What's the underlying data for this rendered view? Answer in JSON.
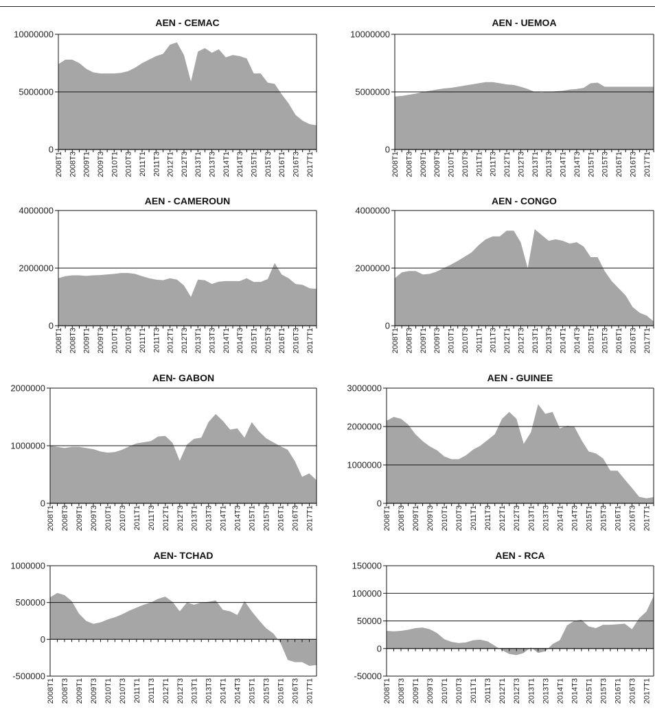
{
  "chart_data": [
    {
      "type": "area",
      "title": "AEN - CEMAC",
      "yticks": [
        0,
        5000000,
        10000000
      ],
      "ylim": [
        0,
        10000000
      ],
      "xtick_labels": [
        "2008T1",
        "2008T3",
        "2009T1",
        "2009T3",
        "2010T1",
        "2010T3",
        "2011T1",
        "2011T3",
        "2012T1",
        "2012T3",
        "2013T1",
        "2013T3",
        "2014T1",
        "2014T3",
        "2015T1",
        "2015T3",
        "2016T1",
        "2016T3",
        "2017T1"
      ],
      "x": [
        "2008T1",
        "2008T2",
        "2008T3",
        "2008T4",
        "2009T1",
        "2009T2",
        "2009T3",
        "2009T4",
        "2010T1",
        "2010T2",
        "2010T3",
        "2010T4",
        "2011T1",
        "2011T2",
        "2011T3",
        "2011T4",
        "2012T1",
        "2012T2",
        "2012T3",
        "2012T4",
        "2013T1",
        "2013T2",
        "2013T3",
        "2013T4",
        "2014T1",
        "2014T2",
        "2014T3",
        "2014T4",
        "2015T1",
        "2015T2",
        "2015T3",
        "2015T4",
        "2016T1",
        "2016T2",
        "2016T3",
        "2016T4",
        "2017T1",
        "2017T2"
      ],
      "values": [
        7400000,
        7800000,
        7800000,
        7500000,
        7000000,
        6700000,
        6600000,
        6600000,
        6600000,
        6650000,
        6800000,
        7100000,
        7500000,
        7800000,
        8100000,
        8300000,
        9100000,
        9300000,
        8200000,
        5900000,
        8500000,
        8800000,
        8400000,
        8700000,
        8000000,
        8200000,
        8100000,
        7900000,
        6600000,
        6600000,
        5800000,
        5700000,
        4800000,
        4000000,
        3000000,
        2500000,
        2200000,
        2100000
      ],
      "grid": true
    },
    {
      "type": "area",
      "title": "AEN - UEMOA",
      "yticks": [
        0,
        5000000,
        10000000
      ],
      "ylim": [
        0,
        10000000
      ],
      "xtick_labels": [
        "2008T1",
        "2008T3",
        "2009T1",
        "2009T3",
        "2010T1",
        "2010T3",
        "2011T1",
        "2011T3",
        "2012T1",
        "2012T3",
        "2013T1",
        "2013T3",
        "2014T1",
        "2014T3",
        "2015T1",
        "2015T3",
        "2016T1",
        "2016T3",
        "2017T1"
      ],
      "x": [
        "2008T1",
        "2008T2",
        "2008T3",
        "2008T4",
        "2009T1",
        "2009T2",
        "2009T3",
        "2009T4",
        "2010T1",
        "2010T2",
        "2010T3",
        "2010T4",
        "2011T1",
        "2011T2",
        "2011T3",
        "2011T4",
        "2012T1",
        "2012T2",
        "2012T3",
        "2012T4",
        "2013T1",
        "2013T2",
        "2013T3",
        "2013T4",
        "2014T1",
        "2014T2",
        "2014T3",
        "2014T4",
        "2015T1",
        "2015T2",
        "2015T3",
        "2015T4",
        "2016T1",
        "2016T2",
        "2016T3",
        "2016T4",
        "2017T1",
        "2017T2"
      ],
      "values": [
        4600000,
        4650000,
        4750000,
        4850000,
        5000000,
        5100000,
        5200000,
        5300000,
        5350000,
        5450000,
        5550000,
        5650000,
        5750000,
        5850000,
        5850000,
        5750000,
        5650000,
        5600000,
        5450000,
        5250000,
        5000000,
        4950000,
        5000000,
        5050000,
        5100000,
        5200000,
        5250000,
        5350000,
        5750000,
        5800000,
        5450000,
        5450000,
        5450000,
        5450000,
        5450000,
        5450000,
        5450000,
        5450000
      ],
      "grid": true
    },
    {
      "type": "area",
      "title": "AEN - CAMEROUN",
      "yticks": [
        0,
        2000000,
        4000000
      ],
      "ylim": [
        0,
        4000000
      ],
      "xtick_labels": [
        "2008T1",
        "2008T3",
        "2009T1",
        "2009T3",
        "2010T1",
        "2010T3",
        "2011T1",
        "2011T3",
        "2012T1",
        "2012T3",
        "2013T1",
        "2013T3",
        "2014T1",
        "2014T3",
        "2015T1",
        "2015T3",
        "2016T1",
        "2016T3",
        "2017T1"
      ],
      "x": [
        "2008T1",
        "2008T2",
        "2008T3",
        "2008T4",
        "2009T1",
        "2009T2",
        "2009T3",
        "2009T4",
        "2010T1",
        "2010T2",
        "2010T3",
        "2010T4",
        "2011T1",
        "2011T2",
        "2011T3",
        "2011T4",
        "2012T1",
        "2012T2",
        "2012T3",
        "2012T4",
        "2013T1",
        "2013T2",
        "2013T3",
        "2013T4",
        "2014T1",
        "2014T2",
        "2014T3",
        "2014T4",
        "2015T1",
        "2015T2",
        "2015T3",
        "2015T4",
        "2016T1",
        "2016T2",
        "2016T3",
        "2016T4",
        "2017T1",
        "2017T2"
      ],
      "values": [
        1650000,
        1720000,
        1750000,
        1750000,
        1730000,
        1750000,
        1760000,
        1780000,
        1800000,
        1830000,
        1830000,
        1800000,
        1720000,
        1650000,
        1600000,
        1580000,
        1650000,
        1600000,
        1400000,
        1000000,
        1600000,
        1580000,
        1450000,
        1530000,
        1550000,
        1550000,
        1550000,
        1650000,
        1520000,
        1520000,
        1620000,
        2180000,
        1780000,
        1650000,
        1450000,
        1420000,
        1300000,
        1280000
      ],
      "grid": true
    },
    {
      "type": "area",
      "title": "AEN - CONGO",
      "yticks": [
        0,
        2000000,
        4000000
      ],
      "ylim": [
        0,
        4000000
      ],
      "xtick_labels": [
        "2008T1",
        "2008T3",
        "2009T1",
        "2009T3",
        "2010T1",
        "2010T3",
        "2011T1",
        "2011T3",
        "2012T1",
        "2012T3",
        "2013T1",
        "2013T3",
        "2014T1",
        "2014T3",
        "2015T1",
        "2015T3",
        "2016T1",
        "2016T3",
        "2017T1"
      ],
      "x": [
        "2008T1",
        "2008T2",
        "2008T3",
        "2008T4",
        "2009T1",
        "2009T2",
        "2009T3",
        "2009T4",
        "2010T1",
        "2010T2",
        "2010T3",
        "2010T4",
        "2011T1",
        "2011T2",
        "2011T3",
        "2011T4",
        "2012T1",
        "2012T2",
        "2012T3",
        "2012T4",
        "2013T1",
        "2013T2",
        "2013T3",
        "2013T4",
        "2014T1",
        "2014T2",
        "2014T3",
        "2014T4",
        "2015T1",
        "2015T2",
        "2015T3",
        "2015T4",
        "2016T1",
        "2016T2",
        "2016T3",
        "2016T4",
        "2017T1",
        "2017T2"
      ],
      "values": [
        1650000,
        1850000,
        1900000,
        1900000,
        1780000,
        1800000,
        1880000,
        2000000,
        2120000,
        2250000,
        2400000,
        2550000,
        2800000,
        3000000,
        3100000,
        3100000,
        3300000,
        3300000,
        2900000,
        2000000,
        3350000,
        3150000,
        2950000,
        3000000,
        2950000,
        2850000,
        2900000,
        2750000,
        2380000,
        2380000,
        1900000,
        1550000,
        1300000,
        1050000,
        650000,
        450000,
        350000,
        150000
      ],
      "grid": true
    },
    {
      "type": "area",
      "title": "AEN- GABON",
      "yticks": [
        0,
        1000000,
        2000000
      ],
      "ylim": [
        0,
        2000000
      ],
      "xtick_labels": [
        "2008T1",
        "2008T3",
        "2009T1",
        "2009T3",
        "2010T1",
        "2010T3",
        "2011T1",
        "2011T3",
        "2012T1",
        "2012T3",
        "2013T1",
        "2013T3",
        "2014T1",
        "2014T3",
        "2015T1",
        "2015T3",
        "2016T1",
        "2016T3",
        "2017T1"
      ],
      "x": [
        "2008T1",
        "2008T2",
        "2008T3",
        "2008T4",
        "2009T1",
        "2009T2",
        "2009T3",
        "2009T4",
        "2010T1",
        "2010T2",
        "2010T3",
        "2010T4",
        "2011T1",
        "2011T2",
        "2011T3",
        "2011T4",
        "2012T1",
        "2012T2",
        "2012T3",
        "2012T4",
        "2013T1",
        "2013T2",
        "2013T3",
        "2013T4",
        "2014T1",
        "2014T2",
        "2014T3",
        "2014T4",
        "2015T1",
        "2015T2",
        "2015T3",
        "2015T4",
        "2016T1",
        "2016T2",
        "2016T3",
        "2016T4",
        "2017T1",
        "2017T2"
      ],
      "values": [
        1000000,
        980000,
        960000,
        980000,
        980000,
        960000,
        940000,
        900000,
        880000,
        890000,
        930000,
        990000,
        1040000,
        1060000,
        1080000,
        1160000,
        1170000,
        1050000,
        740000,
        1020000,
        1120000,
        1140000,
        1410000,
        1550000,
        1430000,
        1280000,
        1300000,
        1140000,
        1410000,
        1250000,
        1130000,
        1060000,
        990000,
        930000,
        730000,
        460000,
        520000,
        400000
      ],
      "grid": true
    },
    {
      "type": "area",
      "title": "AEN - GUINEE",
      "yticks": [
        0,
        1000000,
        2000000,
        3000000
      ],
      "ylim": [
        0,
        3000000
      ],
      "xtick_labels": [
        "2008T1",
        "2008T3",
        "2009T1",
        "2009T3",
        "2010T1",
        "2010T3",
        "2011T1",
        "2011T3",
        "2012T1",
        "2012T3",
        "2013T1",
        "2013T3",
        "2014T1",
        "2014T3",
        "2015T1",
        "2015T3",
        "2016T1",
        "2016T3",
        "2017T1"
      ],
      "x": [
        "2008T1",
        "2008T2",
        "2008T3",
        "2008T4",
        "2009T1",
        "2009T2",
        "2009T3",
        "2009T4",
        "2010T1",
        "2010T2",
        "2010T3",
        "2010T4",
        "2011T1",
        "2011T2",
        "2011T3",
        "2011T4",
        "2012T1",
        "2012T2",
        "2012T3",
        "2012T4",
        "2013T1",
        "2013T2",
        "2013T3",
        "2013T4",
        "2014T1",
        "2014T2",
        "2014T3",
        "2014T4",
        "2015T1",
        "2015T2",
        "2015T3",
        "2015T4",
        "2016T1",
        "2016T2",
        "2016T3",
        "2016T4",
        "2017T1",
        "2017T2"
      ],
      "values": [
        2150000,
        2250000,
        2200000,
        2050000,
        1800000,
        1620000,
        1480000,
        1380000,
        1220000,
        1150000,
        1150000,
        1250000,
        1400000,
        1500000,
        1650000,
        1800000,
        2200000,
        2380000,
        2200000,
        1550000,
        1850000,
        2580000,
        2330000,
        2380000,
        1950000,
        2020000,
        2000000,
        1650000,
        1350000,
        1300000,
        1170000,
        850000,
        850000,
        620000,
        400000,
        170000,
        130000,
        160000
      ],
      "grid": true
    },
    {
      "type": "area",
      "title": "AEN- TCHAD",
      "yticks": [
        -500000,
        0,
        500000,
        1000000
      ],
      "ylim": [
        -500000,
        1000000
      ],
      "xtick_labels": [
        "2008T1",
        "2008T3",
        "2009T1",
        "2009T3",
        "2010T1",
        "2010T3",
        "2011T1",
        "2011T3",
        "2012T1",
        "2012T3",
        "2013T1",
        "2013T3",
        "2014T1",
        "2014T3",
        "2015T1",
        "2015T3",
        "2016T1",
        "2016T3",
        "2017T1"
      ],
      "x": [
        "2008T1",
        "2008T2",
        "2008T3",
        "2008T4",
        "2009T1",
        "2009T2",
        "2009T3",
        "2009T4",
        "2010T1",
        "2010T2",
        "2010T3",
        "2010T4",
        "2011T1",
        "2011T2",
        "2011T3",
        "2011T4",
        "2012T1",
        "2012T2",
        "2012T3",
        "2012T4",
        "2013T1",
        "2013T2",
        "2013T3",
        "2013T4",
        "2014T1",
        "2014T2",
        "2014T3",
        "2014T4",
        "2015T1",
        "2015T2",
        "2015T3",
        "2015T4",
        "2016T1",
        "2016T2",
        "2016T3",
        "2016T4",
        "2017T1",
        "2017T2"
      ],
      "values": [
        570000,
        630000,
        600000,
        520000,
        350000,
        250000,
        210000,
        230000,
        270000,
        300000,
        340000,
        390000,
        430000,
        470000,
        500000,
        550000,
        580000,
        510000,
        380000,
        500000,
        470000,
        500000,
        510000,
        530000,
        400000,
        380000,
        330000,
        520000,
        380000,
        260000,
        150000,
        80000,
        -50000,
        -280000,
        -310000,
        -310000,
        -360000,
        -350000
      ],
      "grid": true
    },
    {
      "type": "area",
      "title": "AEN - RCA",
      "yticks": [
        -50000,
        0,
        50000,
        100000,
        150000
      ],
      "ylim": [
        -50000,
        150000
      ],
      "xtick_labels": [
        "2008T1",
        "2008T3",
        "2009T1",
        "2009T3",
        "2010T1",
        "2010T3",
        "2011T1",
        "2011T3",
        "2012T1",
        "2012T3",
        "2013T1",
        "2013T3",
        "2014T1",
        "2014T3",
        "2015T1",
        "2015T3",
        "2016T1",
        "2016T3",
        "2017T1"
      ],
      "x": [
        "2008T1",
        "2008T2",
        "2008T3",
        "2008T4",
        "2009T1",
        "2009T2",
        "2009T3",
        "2009T4",
        "2010T1",
        "2010T2",
        "2010T3",
        "2010T4",
        "2011T1",
        "2011T2",
        "2011T3",
        "2011T4",
        "2012T1",
        "2012T2",
        "2012T3",
        "2012T4",
        "2013T1",
        "2013T2",
        "2013T3",
        "2013T4",
        "2014T1",
        "2014T2",
        "2014T3",
        "2014T4",
        "2015T1",
        "2015T2",
        "2015T3",
        "2015T4",
        "2016T1",
        "2016T2",
        "2016T3",
        "2016T4",
        "2017T1",
        "2017T2"
      ],
      "values": [
        32000,
        31000,
        32000,
        34000,
        37000,
        38000,
        35000,
        28000,
        17000,
        12000,
        10000,
        11000,
        15000,
        16000,
        13000,
        5000,
        -3000,
        -10000,
        -12000,
        -8000,
        2000,
        -8000,
        -5000,
        8000,
        15000,
        42000,
        50000,
        52000,
        40000,
        37000,
        43000,
        43000,
        44000,
        45000,
        35000,
        55000,
        67000,
        95000
      ],
      "grid": true
    }
  ]
}
